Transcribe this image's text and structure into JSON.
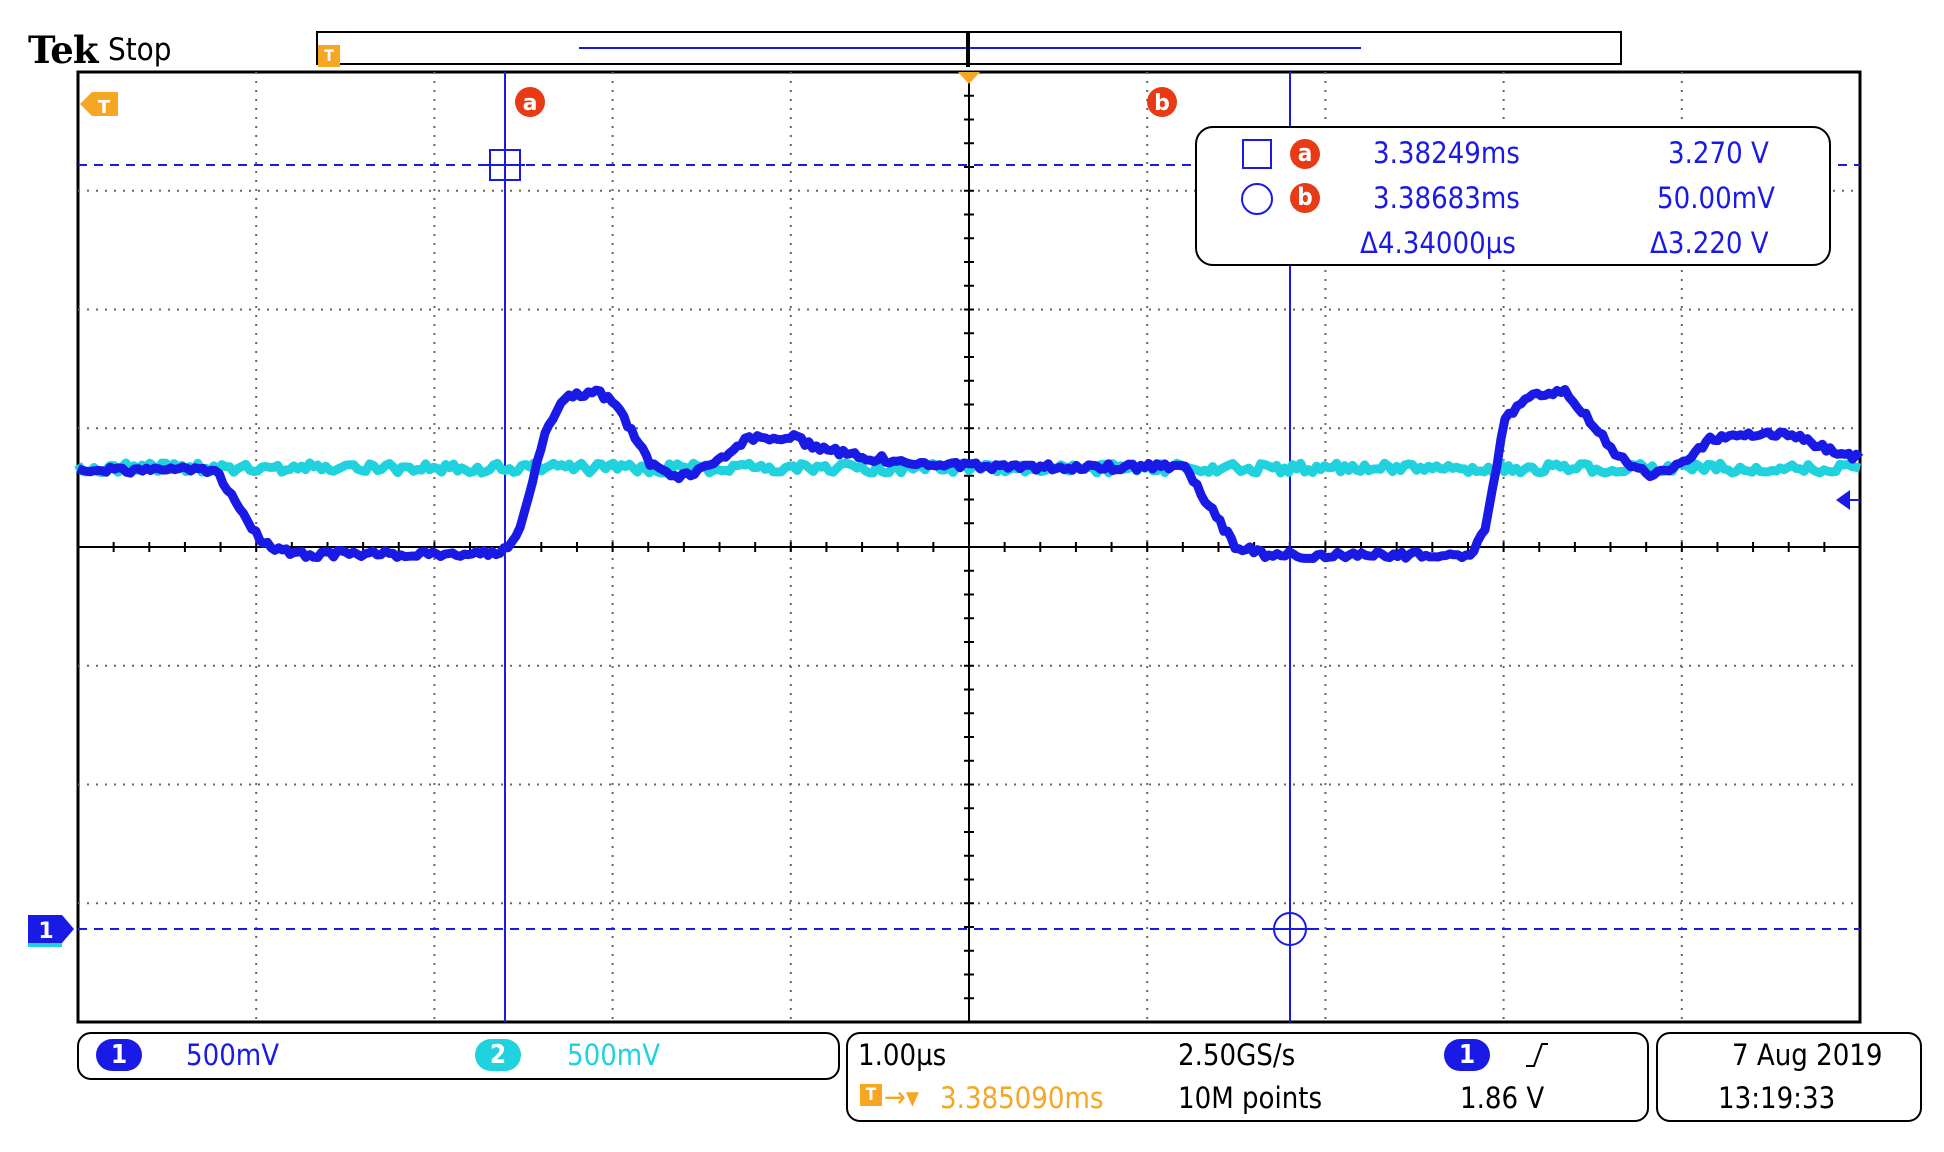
{
  "header": {
    "brand": "Tek",
    "run_state": "Stop"
  },
  "record_bar": {
    "trigger_icon": "trigger-marker-T"
  },
  "cursors": {
    "a": {
      "label": "a",
      "time": "3.38249ms",
      "value": "3.270 V"
    },
    "b": {
      "label": "b",
      "time": "3.38683ms",
      "value": "50.00mV"
    },
    "delta": {
      "time": "Δ4.34000µs",
      "value": "Δ3.220 V"
    }
  },
  "channels": [
    {
      "number": "1",
      "scale": "500mV",
      "color": "#1a1ae6"
    },
    {
      "number": "2",
      "scale": "500mV",
      "color": "#1fd2de"
    }
  ],
  "horizontal": {
    "time_per_div": "1.00µs",
    "sample_rate": "2.50GS/s",
    "record_length": "10M points",
    "trigger_position": "3.385090ms",
    "trigger_source": "1",
    "trigger_slope": "rising-edge",
    "trigger_level": "1.86 V"
  },
  "datetime": {
    "date": "7 Aug 2019",
    "time": "13:19:33"
  },
  "colors": {
    "ch1": "#1a1ae6",
    "ch2": "#1fd2de",
    "cursor_badge": "#e83a14",
    "trigger": "#f5a623"
  },
  "markers": {
    "ch1_ground": "1",
    "trigger_marker": "T"
  }
}
